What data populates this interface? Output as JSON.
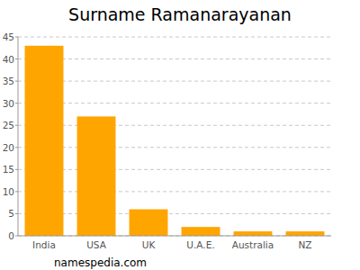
{
  "chart_data": {
    "type": "bar",
    "title": "Surname Ramanarayanan",
    "source": "namespedia.com",
    "categories": [
      "India",
      "USA",
      "UK",
      "U.A.E.",
      "Australia",
      "NZ"
    ],
    "values": [
      43,
      27,
      6,
      2,
      1,
      1
    ],
    "color": "#ffa500",
    "ylim": [
      0,
      45
    ],
    "yticks": [
      0,
      5,
      10,
      15,
      20,
      25,
      30,
      35,
      40,
      45
    ],
    "grid": true
  }
}
